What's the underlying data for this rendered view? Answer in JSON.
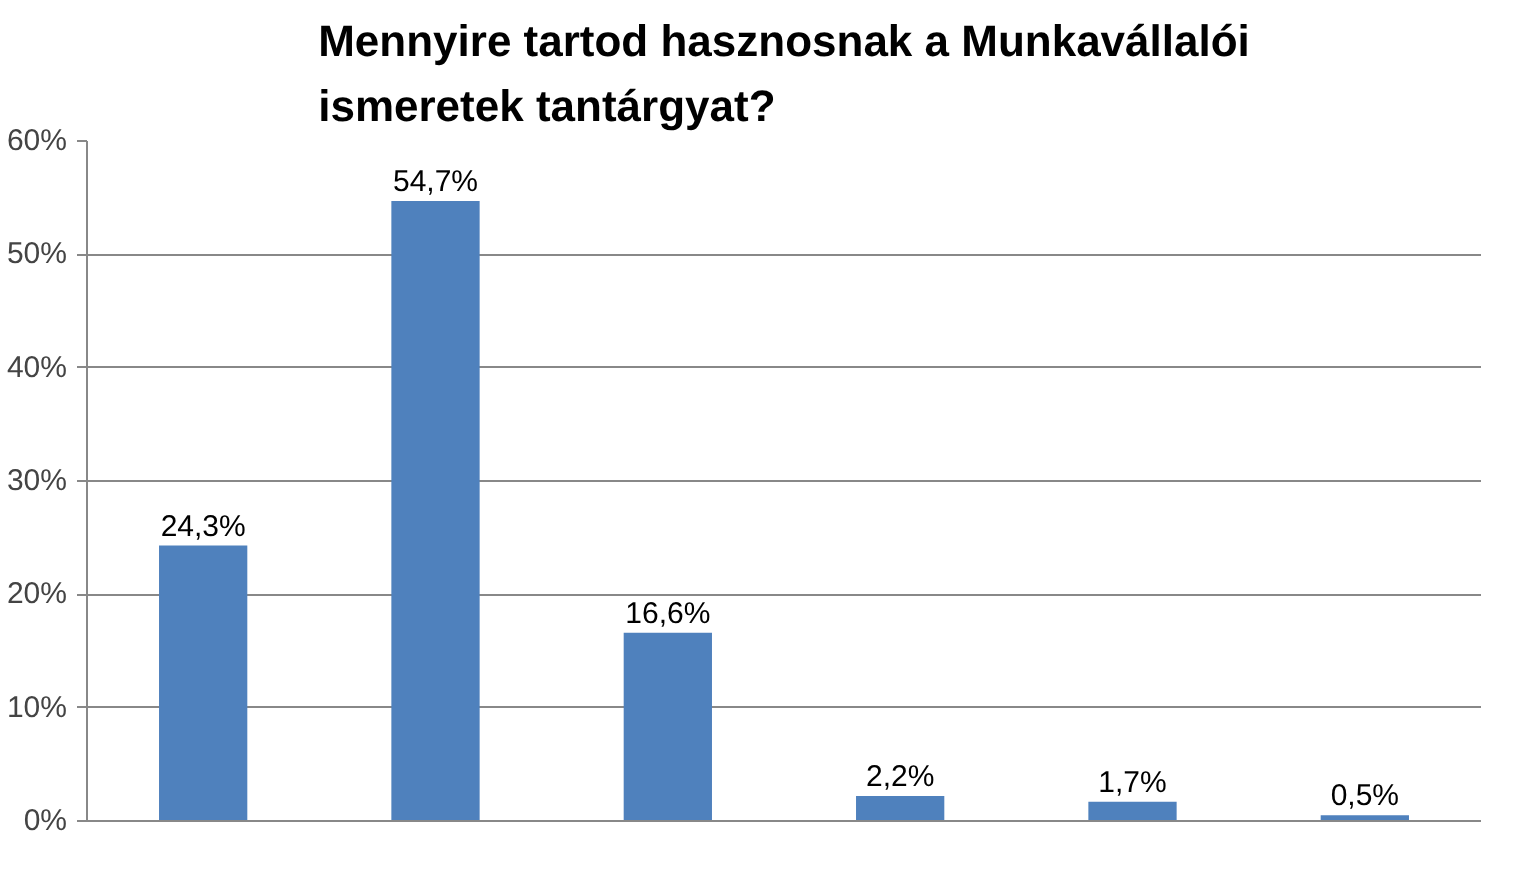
{
  "chart_data": {
    "type": "bar",
    "title": "Mennyire tartod hasznosnak a Munkavállalói ismeretek tantárgyat?",
    "categories": [
      null,
      null,
      null,
      null,
      null,
      null
    ],
    "values": [
      24.3,
      54.7,
      16.6,
      2.2,
      1.7,
      0.5
    ],
    "value_labels": [
      "24,3%",
      "54,7%",
      "16,6%",
      "2,2%",
      "1,7%",
      "0,5%"
    ],
    "color": "#4f81bd",
    "ylim": [
      0,
      60
    ],
    "yticks": [
      {
        "value": 0,
        "label": "0%"
      },
      {
        "value": 10,
        "label": "10%"
      },
      {
        "value": 20,
        "label": "20%"
      },
      {
        "value": 30,
        "label": "30%"
      },
      {
        "value": 40,
        "label": "40%"
      },
      {
        "value": 50,
        "label": "50%"
      },
      {
        "value": 60,
        "label": "60%"
      }
    ],
    "grid": "y"
  }
}
